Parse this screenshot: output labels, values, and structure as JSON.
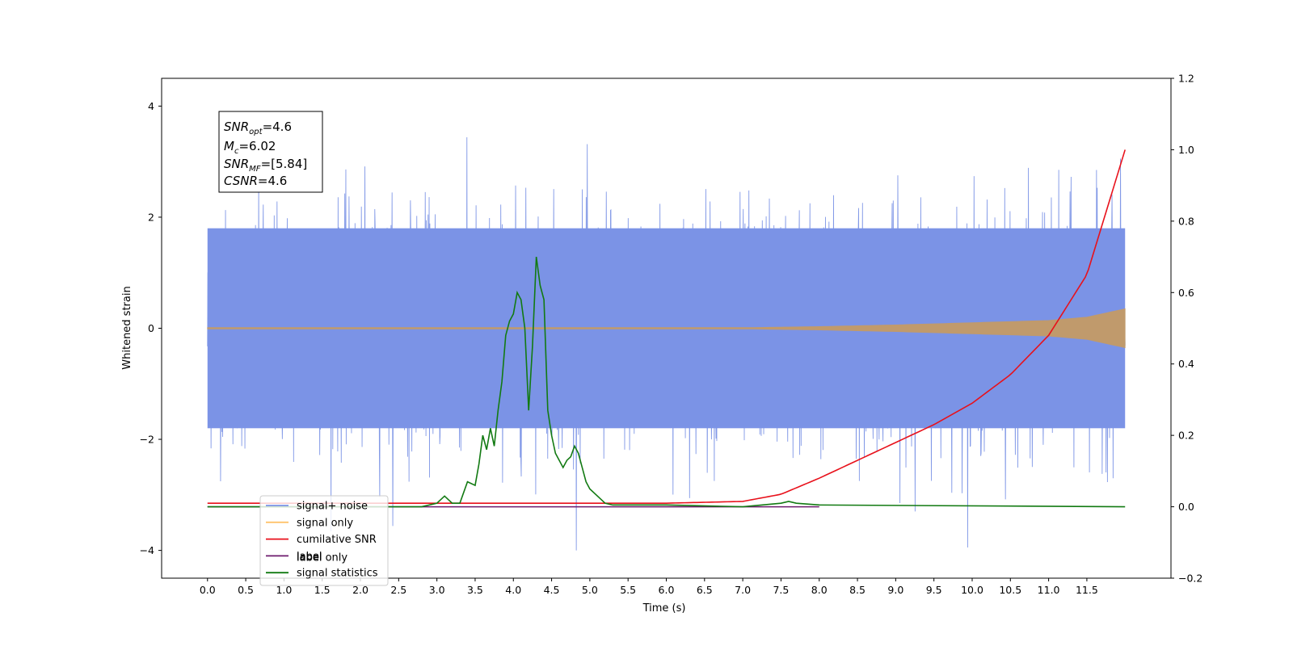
{
  "chart_data": {
    "type": "line",
    "xlabel": "Time (s)",
    "ylabel": "Whitened strain",
    "xlim": [
      -0.6,
      12.6
    ],
    "ylim_left": [
      -4.5,
      4.5
    ],
    "ylim_right": [
      -0.2,
      1.2
    ],
    "x_ticks": [
      "0.0",
      "0.5",
      "1.0",
      "1.5",
      "2.0",
      "2.5",
      "3.0",
      "3.5",
      "4.0",
      "4.5",
      "5.0",
      "5.5",
      "6.0",
      "6.5",
      "7.0",
      "7.5",
      "8.0",
      "8.5",
      "9.0",
      "9.5",
      "10.0",
      "10.5",
      "11.0",
      "11.5"
    ],
    "y_ticks_left": [
      "−4",
      "−2",
      "0",
      "2",
      "4"
    ],
    "y_ticks_right": [
      "−0.2",
      "0.0",
      "0.2",
      "0.4",
      "0.6",
      "0.8",
      "1.0",
      "1.2"
    ],
    "annotation": {
      "snr_opt": "=4.6",
      "mc": "=6.02",
      "snr_mf": "=[5.84]",
      "csnr": "=4.6"
    },
    "legend": {
      "placement": "lower-left",
      "entries": [
        {
          "label": "signal+ noise",
          "color": "#7b93e6"
        },
        {
          "label": "signal only",
          "color": "#ffc36b"
        },
        {
          "label": "cumilative SNR",
          "color": "#e8111b"
        },
        {
          "label": "label",
          "color": "#6d1a6d"
        },
        {
          "label": "signal statistics",
          "color": "#127a12"
        }
      ],
      "occluded_label": "label only"
    },
    "series": [
      {
        "name": "signal+ noise",
        "axis": "left",
        "color": "#7b93e6",
        "x_range": [
          0.0,
          12.0
        ],
        "amplitude_band": 1.8,
        "peak_envelope": 3.3
      },
      {
        "name": "signal only",
        "axis": "left",
        "color": "#c09a6c",
        "x": [
          0,
          2,
          4,
          6,
          7,
          8,
          9,
          10,
          11,
          11.5,
          12
        ],
        "envelope": [
          0.0,
          0.0,
          0.0,
          0.005,
          0.01,
          0.03,
          0.06,
          0.1,
          0.14,
          0.2,
          0.35
        ]
      },
      {
        "name": "cumilative SNR",
        "axis": "right",
        "color": "#e8111b",
        "x": [
          0,
          6,
          7,
          7.5,
          8,
          8.5,
          9,
          9.5,
          10,
          10.5,
          11,
          11.5,
          12
        ],
        "y": [
          0.01,
          0.01,
          0.015,
          0.035,
          0.08,
          0.13,
          0.18,
          0.23,
          0.29,
          0.37,
          0.48,
          0.65,
          1.0
        ]
      },
      {
        "name": "label",
        "axis": "right",
        "color": "#6d1a6d",
        "x": [
          0,
          8
        ],
        "y": [
          0.0,
          0.0
        ]
      },
      {
        "name": "signal statistics",
        "axis": "right",
        "color": "#127a12",
        "x": [
          0,
          2.8,
          3.0,
          3.1,
          3.2,
          3.3,
          3.4,
          3.5,
          3.55,
          3.6,
          3.65,
          3.7,
          3.75,
          3.8,
          3.85,
          3.9,
          3.95,
          4.0,
          4.05,
          4.1,
          4.15,
          4.2,
          4.25,
          4.3,
          4.35,
          4.4,
          4.45,
          4.5,
          4.55,
          4.6,
          4.65,
          4.7,
          4.75,
          4.8,
          4.85,
          4.9,
          4.95,
          5.0,
          5.1,
          5.2,
          5.3,
          6.0,
          7.0,
          7.5,
          7.6,
          7.7,
          8.0,
          12.0
        ],
        "y": [
          0.0,
          0.0,
          0.01,
          0.03,
          0.01,
          0.01,
          0.07,
          0.06,
          0.12,
          0.2,
          0.16,
          0.22,
          0.17,
          0.27,
          0.35,
          0.48,
          0.52,
          0.54,
          0.6,
          0.58,
          0.5,
          0.27,
          0.45,
          0.7,
          0.62,
          0.58,
          0.27,
          0.2,
          0.15,
          0.13,
          0.11,
          0.13,
          0.14,
          0.17,
          0.15,
          0.11,
          0.07,
          0.05,
          0.03,
          0.01,
          0.005,
          0.005,
          0.0,
          0.01,
          0.015,
          0.01,
          0.005,
          0.0
        ]
      }
    ]
  }
}
